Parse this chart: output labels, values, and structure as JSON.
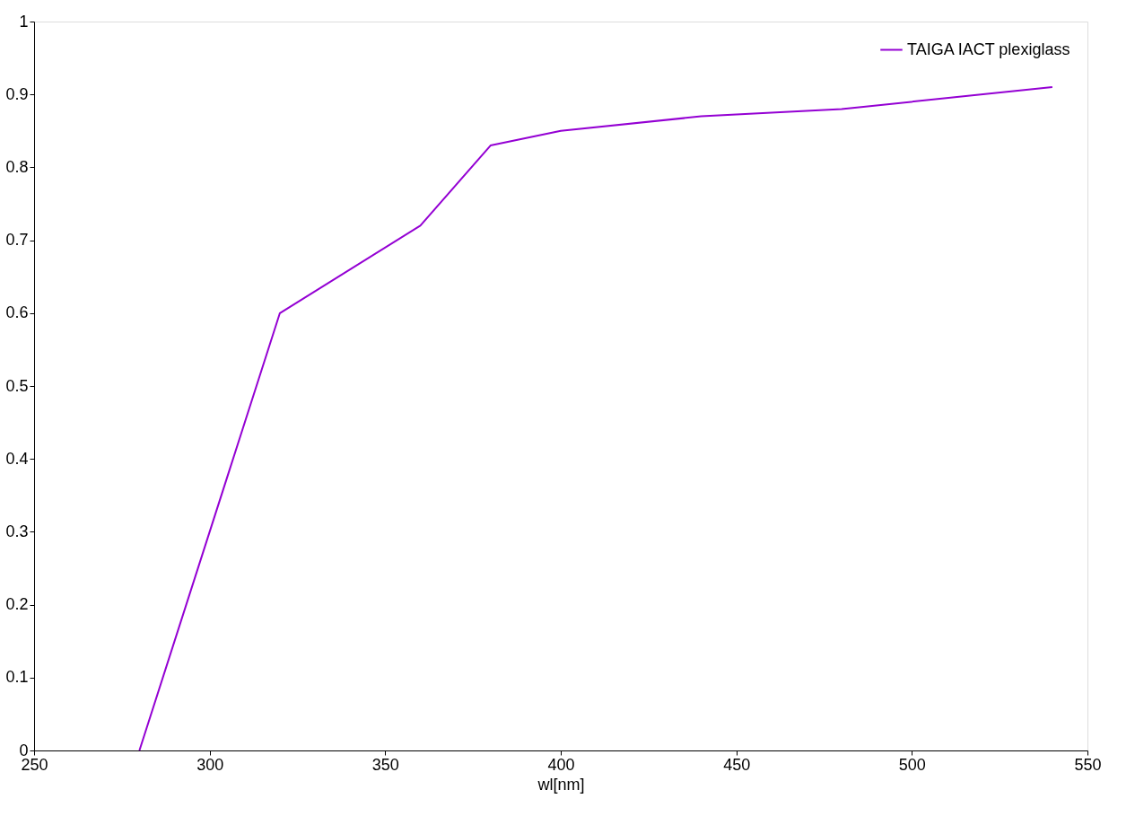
{
  "chart_data": {
    "type": "line",
    "xlabel": "wl[nm]",
    "x": [
      280,
      320,
      360,
      380,
      400,
      440,
      480,
      540
    ],
    "series": [
      {
        "name": "TAIGA IACT plexiglass",
        "color": "#9400d3",
        "values": [
          0,
          0.6,
          0.72,
          0.83,
          0.85,
          0.87,
          0.88,
          0.91
        ]
      }
    ],
    "xlim": [
      250,
      550
    ],
    "xticks": [
      250,
      300,
      350,
      400,
      450,
      500,
      550
    ],
    "ylim": [
      0,
      1
    ],
    "yticks": [
      0,
      0.1,
      0.2,
      0.3,
      0.4,
      0.5,
      0.6,
      0.7,
      0.8,
      0.9,
      1
    ],
    "grid": false,
    "legend": "top right",
    "marker": "none",
    "line_style": "solid"
  }
}
